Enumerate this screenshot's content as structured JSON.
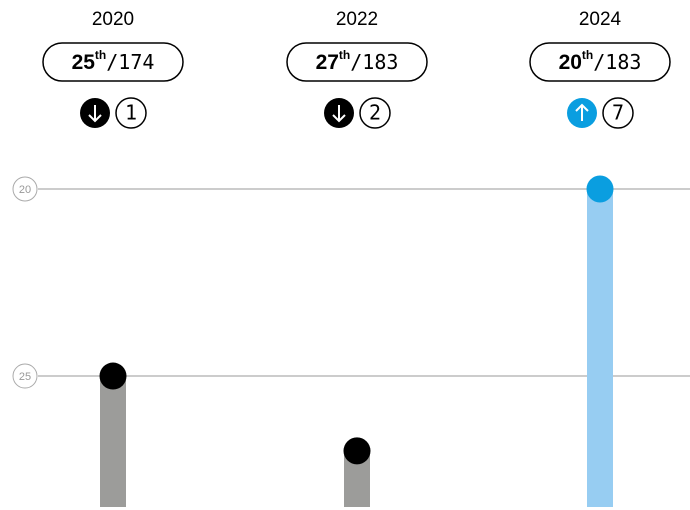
{
  "chart_data": {
    "type": "lollipop",
    "categories": [
      "2020",
      "2022",
      "2024"
    ],
    "values": [
      25,
      27,
      20
    ],
    "ordinal_suffixes": [
      "th",
      "th",
      "th"
    ],
    "separator": "/",
    "totals": [
      174,
      183,
      183
    ],
    "changes": [
      1,
      2,
      7
    ],
    "directions": [
      "down",
      "down",
      "up"
    ],
    "direction_colors": {
      "down": "#000000",
      "up": "#0a9ee0"
    },
    "bar_colors": [
      "#9c9c9a",
      "#9c9c9a",
      "#97cdf2"
    ],
    "dot_colors": [
      "#000000",
      "#000000",
      "#0a9ee0"
    ],
    "ylim": [
      28.5,
      20
    ],
    "yticks": [
      20,
      25
    ],
    "grid": true
  }
}
